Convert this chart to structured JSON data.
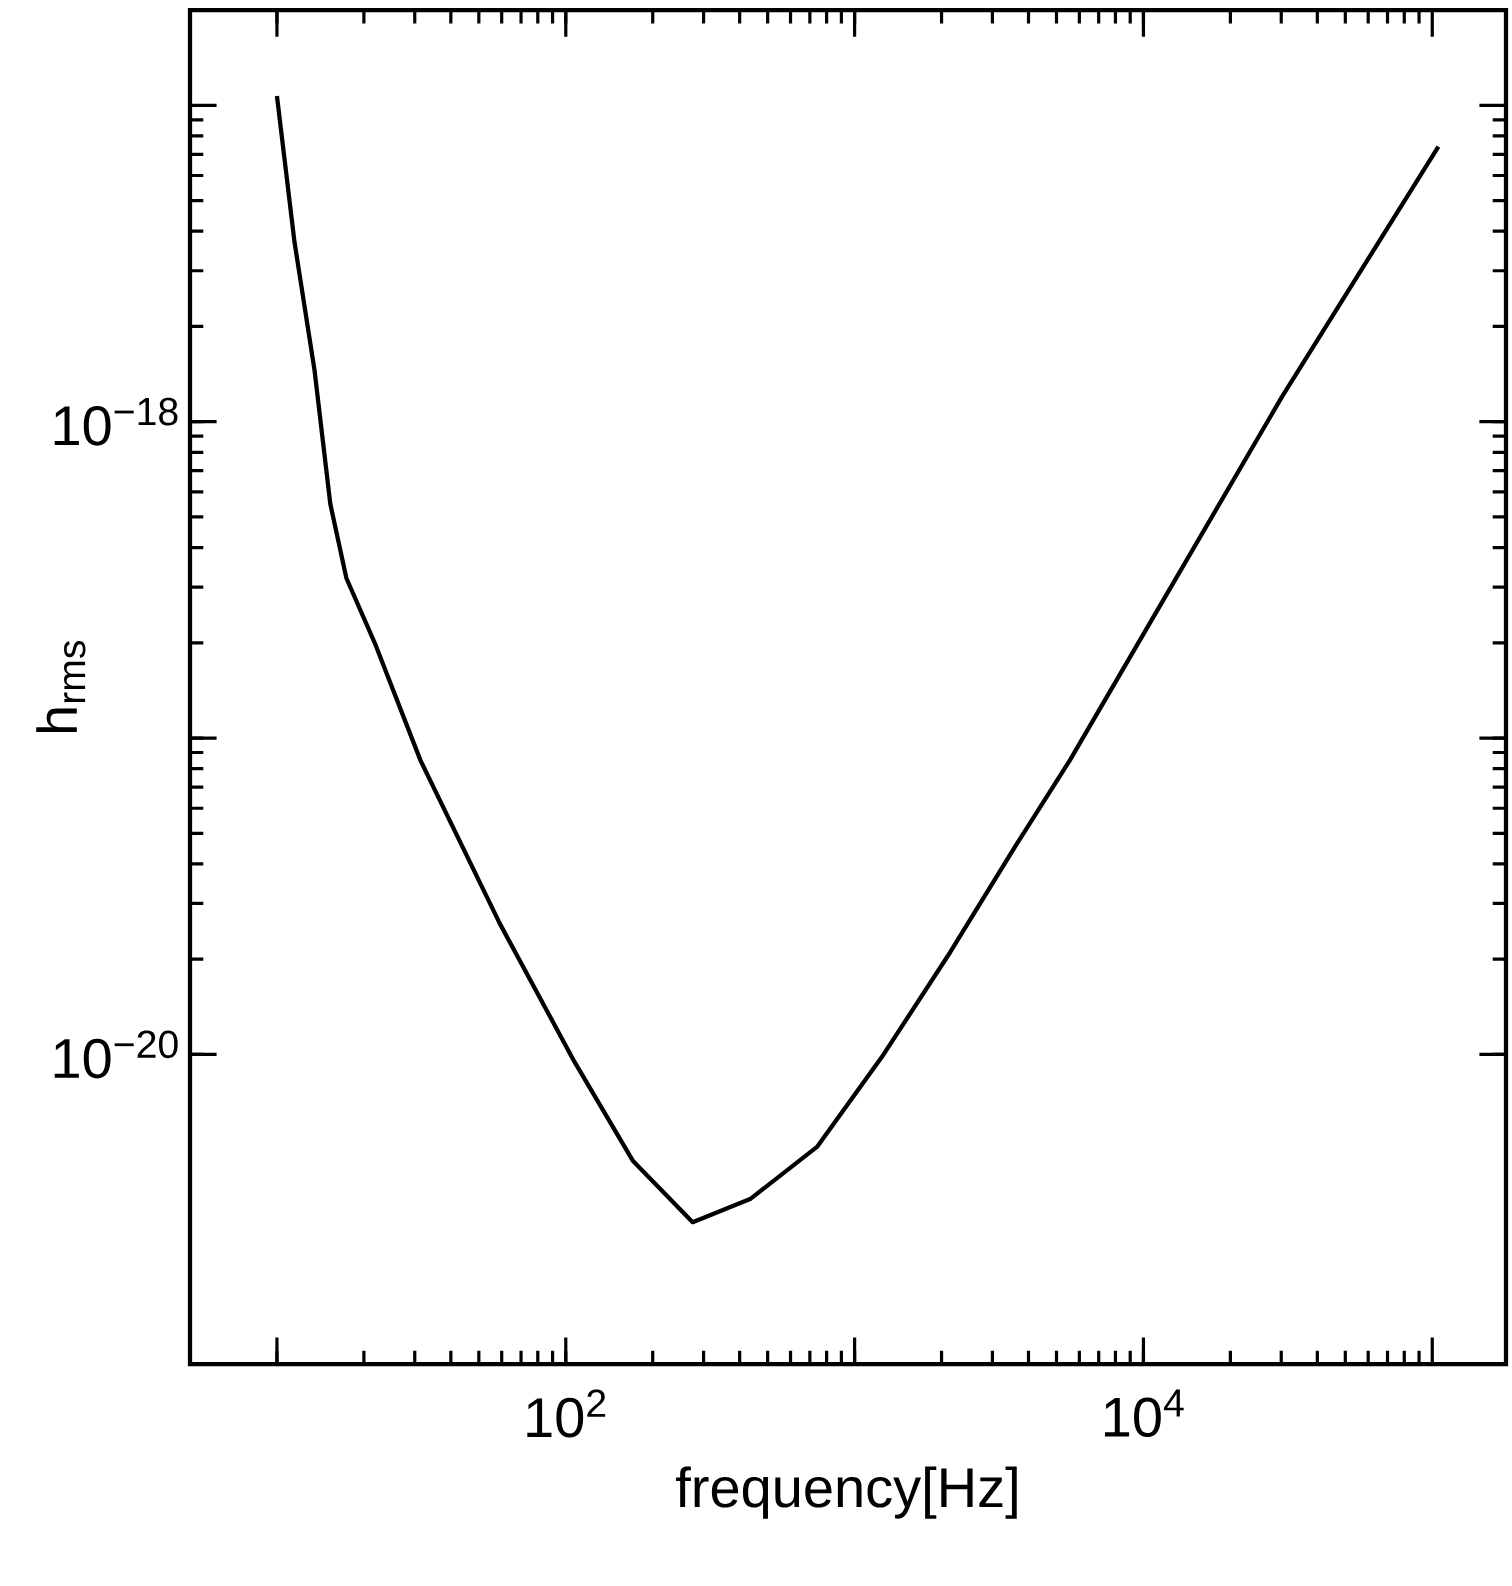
{
  "chart_data": {
    "type": "line",
    "xlabel": "frequency[Hz]",
    "ylabel": "h$_{rms}$",
    "log": "xy",
    "x": [
      10,
      11.5,
      13.5,
      15.3,
      17.4,
      21.8,
      31.4,
      59,
      107,
      171,
      275,
      437,
      741,
      1260,
      2140,
      3630,
      5560,
      10500,
      30200,
      105000
    ],
    "series": [
      {
        "color": "#000000",
        "values": [
          1.07e-17,
          3.7e-18,
          1.45e-18,
          5.5e-19,
          3.2e-19,
          2e-19,
          8.5e-20,
          2.6e-20,
          9.5e-21,
          4.6e-21,
          2.95e-21,
          3.5e-21,
          5.1e-21,
          1e-20,
          2.1e-20,
          4.6e-20,
          8.5e-20,
          2.3e-19,
          1.2e-18,
          7.4e-18
        ]
      }
    ],
    "xlim": [
      5,
      180000
    ],
    "xticks": [
      {
        "value": 10,
        "label": null
      },
      {
        "value": 100,
        "label": "10$^{2}$"
      },
      {
        "value": 1000,
        "label": null
      },
      {
        "value": 10000,
        "label": "10$^{4}$"
      },
      {
        "value": 100000,
        "label": null
      }
    ],
    "ylim": [
      1.05e-21,
      2e-17
    ],
    "yticks": [
      {
        "value": 1e-20,
        "label": "10$^{−20}$"
      },
      {
        "value": 1e-19,
        "label": null
      },
      {
        "value": 1e-18,
        "label": "10$^{−18}$"
      },
      {
        "value": 1e-17,
        "label": null
      }
    ],
    "grid": false,
    "marker": "none",
    "line_style": "solid"
  }
}
